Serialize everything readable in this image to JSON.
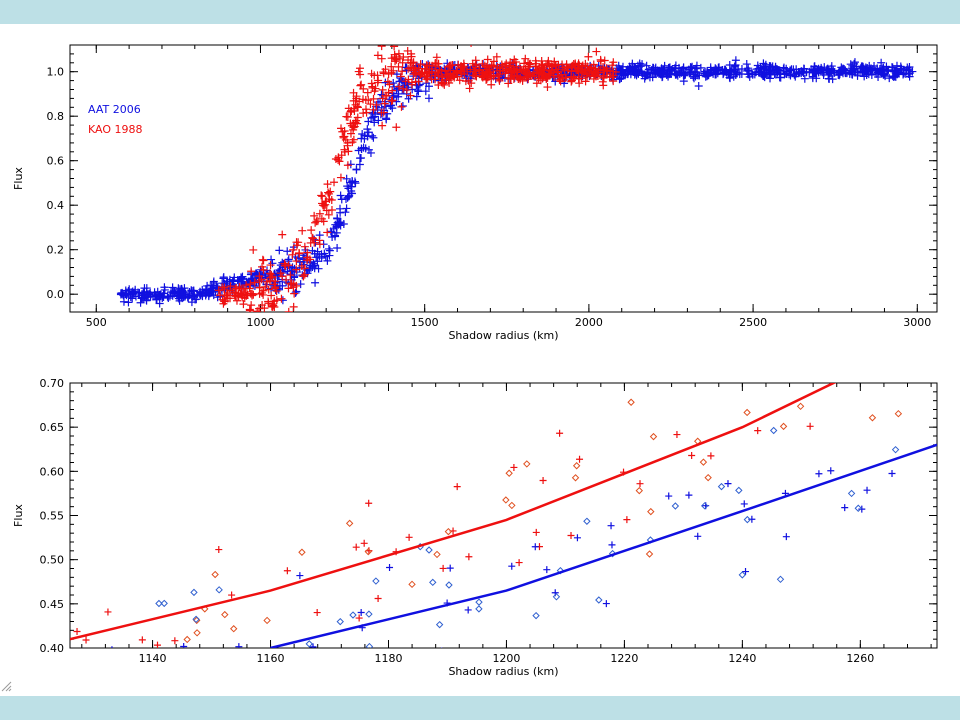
{
  "colors": {
    "band": "#bde0e6",
    "aat": "#1010e0",
    "kao": "#ee1010",
    "kao_diamond": "#e05020",
    "aat_diamond": "#3060d0"
  },
  "chart_data": [
    {
      "type": "scatter",
      "xlabel": "Shadow radius (km)",
      "ylabel": "Flux",
      "xlim": [
        420,
        3060
      ],
      "ylim": [
        -0.08,
        1.12
      ],
      "xticks": [
        500,
        1000,
        1500,
        2000,
        2500,
        3000
      ],
      "yticks": [
        0.0,
        0.2,
        0.4,
        0.6,
        0.8,
        1.0
      ],
      "ytick_labels": [
        "0.0",
        "0.2",
        "0.4",
        "0.6",
        "0.8",
        "1.0"
      ],
      "legend_position": "upper-left",
      "series": [
        {
          "name": "AAT 2006",
          "color": "#1010e0",
          "marker": "+",
          "x_range": [
            575,
            2985
          ],
          "profile": "logistic",
          "center_km": 1275,
          "width_km": 55,
          "shoulder": 0.2,
          "noise": 0.015
        },
        {
          "name": "KAO 1988",
          "color": "#ee1010",
          "marker": "+",
          "x_range": [
            870,
            2090
          ],
          "profile": "logistic",
          "center_km": 1215,
          "width_km": 50,
          "shoulder": 0.0,
          "noise": 0.025
        }
      ]
    },
    {
      "type": "scatter",
      "xlabel": "Shadow radius (km)",
      "ylabel": "Flux",
      "xlim": [
        1126,
        1273
      ],
      "ylim": [
        0.4,
        0.7
      ],
      "xticks": [
        1140,
        1160,
        1180,
        1200,
        1220,
        1240,
        1260
      ],
      "yticks": [
        0.4,
        0.45,
        0.5,
        0.55,
        0.6,
        0.65,
        0.7
      ],
      "ytick_labels": [
        "0.40",
        "0.45",
        "0.50",
        "0.55",
        "0.60",
        "0.65",
        "0.70"
      ],
      "fit_lines": [
        {
          "color": "#ee1010",
          "points": [
            [
              1126,
              0.41
            ],
            [
              1160,
              0.465
            ],
            [
              1200,
              0.545
            ],
            [
              1240,
              0.65
            ],
            [
              1257,
              0.705
            ]
          ]
        },
        {
          "color": "#1010e0",
          "points": [
            [
              1160,
              0.4
            ],
            [
              1200,
              0.465
            ],
            [
              1240,
              0.555
            ],
            [
              1273,
              0.63
            ]
          ]
        }
      ],
      "scatter_series": [
        {
          "color": "#ee1010",
          "marker": "+",
          "count": 42,
          "offset": 0.0
        },
        {
          "color": "#e05020",
          "marker": "diamond",
          "count": 40,
          "offset": 0.0
        },
        {
          "color": "#1010e0",
          "marker": "+",
          "count": 42,
          "offset": 0.0
        },
        {
          "color": "#3060d0",
          "marker": "diamond",
          "count": 40,
          "offset": 0.0
        }
      ]
    }
  ]
}
